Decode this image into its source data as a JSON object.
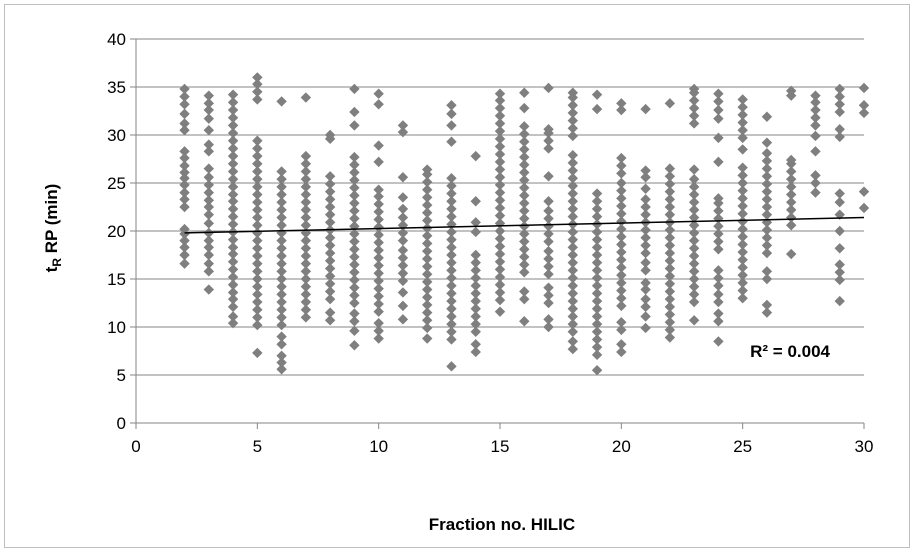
{
  "chart_data": {
    "type": "scatter",
    "xlabel": "Fraction no. HILIC",
    "ylabel_main": "t",
    "ylabel_sub": "R",
    "ylabel_rest": " RP (min)",
    "xlim": [
      0,
      30
    ],
    "ylim": [
      0,
      40
    ],
    "xticks": [
      0,
      5,
      10,
      15,
      20,
      25,
      30
    ],
    "yticks": [
      0,
      5,
      10,
      15,
      20,
      25,
      30,
      35,
      40
    ],
    "grid": "horizontal",
    "legend": "none",
    "marker": "diamond",
    "marker_color": "#7f7f7f",
    "trendline": {
      "type": "linear",
      "x": [
        2,
        30
      ],
      "y": [
        19.8,
        21.4
      ],
      "color": "#000000"
    },
    "annotation": "R² = 0.004",
    "columns": [
      {
        "x": 2,
        "y": [
          16.6,
          17.5,
          18.3,
          19.0,
          19.7,
          20.2,
          22.5,
          23.3,
          24.0,
          24.8,
          25.5,
          26.1,
          26.8,
          27.6,
          28.3,
          30.5,
          31.2,
          32.2,
          33.2,
          34.0,
          34.8
        ]
      },
      {
        "x": 3,
        "y": [
          13.9,
          15.8,
          16.6,
          17.5,
          18.3,
          19.0,
          19.8,
          20.8,
          21.7,
          22.5,
          23.2,
          24.0,
          24.8,
          25.6,
          26.5,
          28.3,
          29.0,
          30.5,
          31.7,
          32.6,
          33.3,
          34.1
        ]
      },
      {
        "x": 4,
        "y": [
          10.4,
          11.1,
          12.1,
          12.9,
          13.6,
          14.4,
          15.2,
          16.0,
          16.8,
          17.6,
          18.3,
          19.1,
          19.9,
          20.7,
          21.5,
          22.3,
          23.1,
          23.8,
          24.6,
          25.4,
          26.2,
          27.0,
          27.8,
          28.6,
          29.4,
          30.2,
          31.0,
          31.8,
          32.6,
          33.4,
          34.2
        ]
      },
      {
        "x": 5,
        "y": [
          7.3,
          10.2,
          11.0,
          11.8,
          12.6,
          13.4,
          14.2,
          15.0,
          15.8,
          16.6,
          17.4,
          18.2,
          19.0,
          19.8,
          20.6,
          21.4,
          22.2,
          23.0,
          23.8,
          24.6,
          25.4,
          26.2,
          27.0,
          27.8,
          28.6,
          29.4,
          33.7,
          34.5,
          35.3,
          36.0
        ]
      },
      {
        "x": 6,
        "y": [
          5.6,
          6.3,
          7.0,
          8.2,
          9.0,
          10.2,
          11.0,
          11.8,
          12.6,
          13.4,
          14.2,
          15.0,
          15.8,
          16.6,
          17.4,
          18.2,
          19.0,
          19.8,
          20.6,
          21.4,
          22.2,
          23.0,
          23.8,
          24.6,
          25.4,
          26.2,
          33.5
        ]
      },
      {
        "x": 7,
        "y": [
          11.0,
          11.8,
          12.6,
          13.4,
          14.2,
          15.0,
          15.8,
          16.6,
          17.4,
          18.2,
          19.0,
          19.8,
          20.6,
          21.4,
          22.2,
          23.0,
          23.8,
          24.6,
          25.4,
          26.2,
          27.0,
          27.8,
          33.9
        ]
      },
      {
        "x": 8,
        "y": [
          10.7,
          11.5,
          12.9,
          13.7,
          14.5,
          15.3,
          16.1,
          16.9,
          17.7,
          18.5,
          19.3,
          20.1,
          20.9,
          21.7,
          22.5,
          23.3,
          24.1,
          24.9,
          25.7,
          29.6,
          30.0
        ]
      },
      {
        "x": 9,
        "y": [
          8.1,
          9.6,
          10.6,
          11.4,
          12.5,
          13.3,
          14.1,
          14.9,
          15.7,
          16.5,
          17.3,
          18.1,
          18.9,
          19.7,
          20.5,
          21.3,
          22.1,
          22.9,
          23.7,
          24.5,
          25.3,
          26.1,
          26.9,
          27.7,
          31.0,
          32.4,
          34.8
        ]
      },
      {
        "x": 10,
        "y": [
          8.8,
          9.6,
          10.4,
          11.6,
          12.4,
          13.2,
          14.0,
          14.8,
          15.6,
          16.4,
          17.2,
          18.0,
          18.8,
          19.6,
          20.4,
          21.2,
          22.0,
          22.8,
          23.6,
          24.3,
          27.2,
          28.9,
          33.2,
          34.3
        ]
      },
      {
        "x": 11,
        "y": [
          10.8,
          12.2,
          13.6,
          14.8,
          15.6,
          16.4,
          17.2,
          18.0,
          19.0,
          19.8,
          20.6,
          21.4,
          22.3,
          23.5,
          25.6,
          30.3,
          31.0
        ]
      },
      {
        "x": 12,
        "y": [
          8.8,
          9.9,
          10.7,
          11.5,
          12.3,
          13.1,
          13.9,
          14.7,
          15.5,
          16.3,
          17.1,
          17.9,
          18.7,
          19.5,
          20.3,
          21.1,
          21.9,
          22.7,
          23.5,
          24.3,
          25.1,
          25.9,
          26.4
        ]
      },
      {
        "x": 13,
        "y": [
          5.9,
          8.7,
          9.5,
          10.3,
          11.1,
          11.9,
          12.7,
          13.5,
          14.3,
          15.1,
          15.9,
          16.7,
          17.5,
          18.3,
          19.1,
          19.9,
          20.7,
          21.5,
          22.3,
          23.1,
          23.9,
          24.7,
          25.5,
          29.3,
          31.0,
          32.2,
          33.1
        ]
      },
      {
        "x": 14,
        "y": [
          7.4,
          8.2,
          9.5,
          10.3,
          11.1,
          11.9,
          12.7,
          13.5,
          14.3,
          15.1,
          15.9,
          16.7,
          17.5,
          19.9,
          20.9,
          23.1,
          27.8
        ]
      },
      {
        "x": 15,
        "y": [
          11.6,
          12.8,
          13.6,
          14.4,
          15.2,
          16.0,
          16.8,
          17.6,
          18.4,
          19.2,
          20.0,
          20.8,
          21.6,
          22.4,
          23.2,
          24.0,
          24.8,
          25.6,
          26.4,
          27.2,
          28.0,
          28.8,
          29.6,
          30.4,
          31.2,
          32.0,
          32.8,
          33.6,
          34.3
        ]
      },
      {
        "x": 16,
        "y": [
          10.6,
          12.9,
          13.7,
          15.7,
          16.5,
          17.3,
          18.1,
          18.9,
          19.7,
          20.5,
          21.3,
          22.1,
          22.9,
          23.7,
          24.5,
          25.3,
          26.1,
          26.9,
          27.7,
          28.5,
          29.3,
          30.1,
          30.9,
          32.8,
          34.4
        ]
      },
      {
        "x": 17,
        "y": [
          10.0,
          10.8,
          12.5,
          13.3,
          14.1,
          15.5,
          16.3,
          17.1,
          17.9,
          18.9,
          19.7,
          20.5,
          21.3,
          22.1,
          23.1,
          25.7,
          28.6,
          29.4,
          30.2,
          30.6,
          34.9
        ]
      },
      {
        "x": 18,
        "y": [
          7.7,
          8.5,
          9.5,
          10.3,
          11.1,
          11.9,
          12.7,
          13.5,
          14.3,
          15.1,
          15.9,
          16.7,
          17.5,
          18.3,
          19.1,
          19.9,
          20.7,
          21.5,
          22.3,
          23.1,
          23.9,
          24.7,
          25.5,
          26.3,
          27.1,
          27.9,
          29.9,
          30.7,
          31.5,
          32.3,
          33.1,
          33.9,
          34.4
        ]
      },
      {
        "x": 19,
        "y": [
          5.5,
          7.1,
          7.9,
          8.7,
          9.5,
          10.3,
          11.1,
          11.9,
          12.7,
          13.5,
          14.3,
          15.1,
          15.9,
          16.7,
          17.5,
          18.3,
          19.1,
          19.9,
          20.7,
          21.5,
          22.3,
          23.1,
          23.9,
          32.7,
          34.2
        ]
      },
      {
        "x": 20,
        "y": [
          7.4,
          8.2,
          9.7,
          10.5,
          12.2,
          13.0,
          13.8,
          14.6,
          15.4,
          16.2,
          17.0,
          17.8,
          18.6,
          19.4,
          20.2,
          21.0,
          21.8,
          22.6,
          23.4,
          24.2,
          25.0,
          26.0,
          26.8,
          27.6,
          32.6,
          33.3
        ]
      },
      {
        "x": 21,
        "y": [
          9.9,
          11.1,
          12.1,
          12.9,
          13.9,
          14.6,
          15.9,
          16.7,
          17.7,
          18.5,
          19.3,
          20.1,
          20.9,
          21.7,
          22.5,
          23.3,
          24.4,
          25.6,
          26.3,
          32.7
        ]
      },
      {
        "x": 22,
        "y": [
          8.9,
          9.7,
          10.5,
          11.3,
          12.1,
          12.9,
          13.7,
          14.5,
          15.3,
          16.1,
          16.9,
          17.7,
          18.5,
          19.3,
          20.1,
          20.9,
          21.7,
          22.5,
          23.3,
          24.1,
          24.9,
          25.7,
          26.5,
          33.3
        ]
      },
      {
        "x": 23,
        "y": [
          10.7,
          12.6,
          13.4,
          14.2,
          15.0,
          15.8,
          16.6,
          17.4,
          18.2,
          19.0,
          19.8,
          20.6,
          21.4,
          22.2,
          23.0,
          23.8,
          24.6,
          25.4,
          26.4,
          31.2,
          32.0,
          32.8,
          33.6,
          34.4,
          34.8
        ]
      },
      {
        "x": 24,
        "y": [
          8.5,
          10.6,
          11.4,
          12.6,
          13.4,
          14.3,
          15.1,
          15.9,
          18.1,
          18.9,
          19.7,
          20.5,
          21.3,
          22.1,
          22.9,
          23.4,
          27.2,
          29.7,
          31.7,
          32.6,
          33.5,
          34.3
        ]
      },
      {
        "x": 25,
        "y": [
          13.0,
          13.8,
          14.6,
          15.4,
          16.2,
          17.0,
          17.8,
          18.6,
          19.4,
          20.2,
          21.0,
          21.8,
          22.6,
          23.4,
          24.2,
          25.0,
          25.8,
          26.6,
          28.5,
          29.7,
          30.5,
          31.3,
          32.1,
          32.9,
          33.7
        ]
      },
      {
        "x": 26,
        "y": [
          11.5,
          12.3,
          15.0,
          15.8,
          17.7,
          18.5,
          19.3,
          20.1,
          20.9,
          21.7,
          22.5,
          23.3,
          24.1,
          24.9,
          25.7,
          26.5,
          27.3,
          28.1,
          29.2,
          31.9
        ]
      },
      {
        "x": 27,
        "y": [
          17.6,
          20.6,
          21.4,
          22.2,
          23.0,
          23.8,
          24.6,
          25.4,
          26.2,
          27.0,
          27.4,
          34.1,
          34.6
        ]
      },
      {
        "x": 28,
        "y": [
          24.0,
          25.0,
          25.8,
          28.3,
          29.9,
          31.0,
          31.8,
          32.6,
          33.4,
          34.1
        ]
      },
      {
        "x": 29,
        "y": [
          12.7,
          14.9,
          15.7,
          16.5,
          18.2,
          20.0,
          21.7,
          23.0,
          23.9,
          29.8,
          30.6,
          32.4,
          33.2,
          34.0,
          34.8
        ]
      },
      {
        "x": 30,
        "y": [
          22.4,
          24.1,
          32.3,
          33.1,
          34.9
        ]
      }
    ]
  }
}
